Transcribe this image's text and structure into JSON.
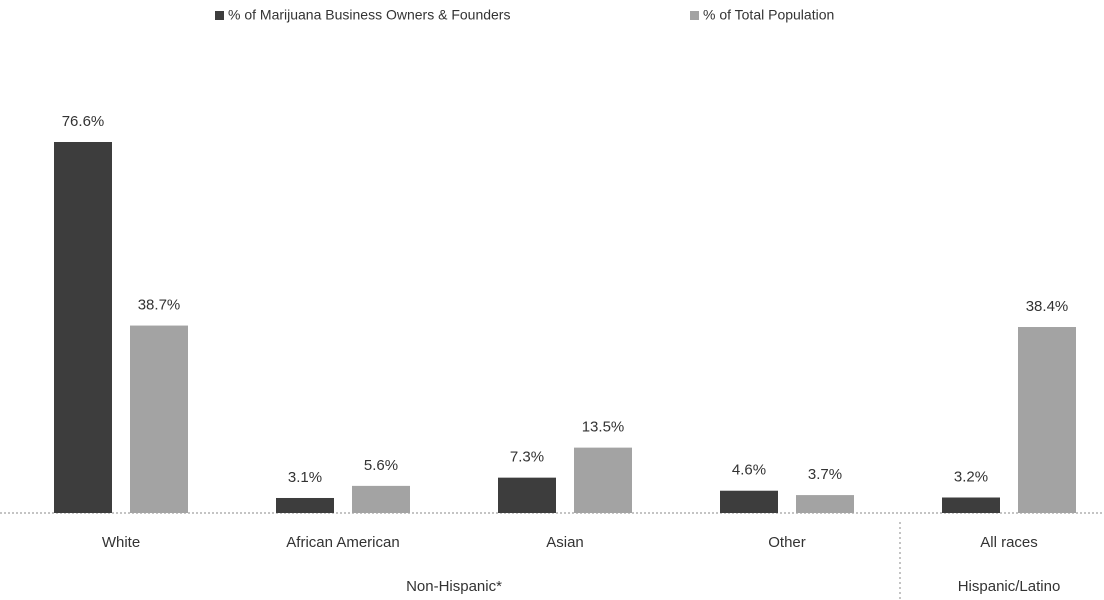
{
  "chart_data": {
    "type": "bar",
    "categories": [
      "White",
      "African American",
      "Asian",
      "Other",
      "All races"
    ],
    "groups": [
      {
        "label": "Non-Hispanic*",
        "span": 4
      },
      {
        "label": "Hispanic/Latino",
        "span": 1
      }
    ],
    "series": [
      {
        "name": "% of Marijuana Business Owners & Founders",
        "color": "#3d3d3d",
        "values": [
          76.6,
          3.1,
          7.3,
          4.6,
          3.2
        ],
        "value_labels": [
          "76.6%",
          "3.1%",
          "7.3%",
          "4.6%",
          "3.2%"
        ]
      },
      {
        "name": "% of Total Population",
        "color": "#a3a3a3",
        "values": [
          38.7,
          5.6,
          13.5,
          3.7,
          38.4
        ],
        "value_labels": [
          "38.7%",
          "5.6%",
          "13.5%",
          "3.7%",
          "38.4%"
        ]
      }
    ],
    "legend": "top"
  }
}
